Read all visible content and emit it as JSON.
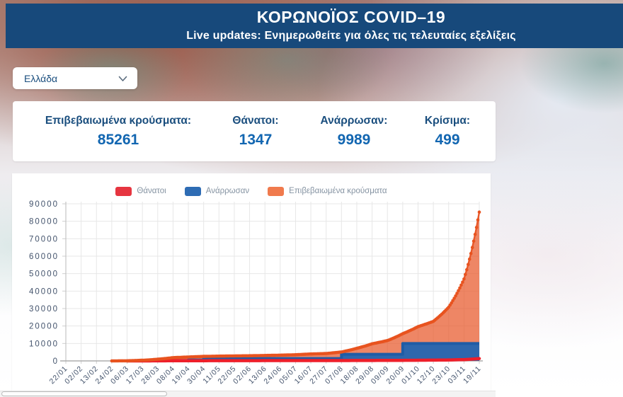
{
  "header": {
    "title": "ΚΟΡΩΝΟΪΟΣ COVID–19",
    "subtitle": "Live updates: Ενημερωθείτε για όλες τις τελευταίες εξελίξεις"
  },
  "country_selector": {
    "selected": "Ελλάδα"
  },
  "stats": {
    "items": [
      {
        "label": "Επιβεβαιωμένα κρούσματα:",
        "value": "85261"
      },
      {
        "label": "Θάνατοι:",
        "value": "1347"
      },
      {
        "label": "Ανάρρωσαν:",
        "value": "9989"
      },
      {
        "label": "Κρίσιμα:",
        "value": "499"
      }
    ]
  },
  "colors": {
    "header_navy": "#17497b",
    "label_navy": "#1a4e7e",
    "value_blue": "#1266b1",
    "deaths_red": "#ee1f2a",
    "recovered_blue": "#2e67ad",
    "confirmed_orange": "#e8582a"
  },
  "chart_data": {
    "type": "area",
    "title": "",
    "xlabel": "",
    "ylabel": "",
    "ylim": [
      0,
      90000
    ],
    "y_ticks": [
      0,
      10000,
      20000,
      30000,
      40000,
      50000,
      60000,
      70000,
      80000,
      90000
    ],
    "grid": true,
    "legend_position": "top",
    "categories": [
      "22/01",
      "02/02",
      "13/02",
      "24/02",
      "06/03",
      "17/03",
      "28/03",
      "08/04",
      "19/04",
      "30/04",
      "11/05",
      "22/05",
      "02/06",
      "13/06",
      "24/06",
      "05/07",
      "16/07",
      "27/07",
      "07/08",
      "18/08",
      "29/08",
      "09/09",
      "20/09",
      "01/10",
      "12/10",
      "23/10",
      "03/11",
      "19/11"
    ],
    "series": [
      {
        "name": "Θάνατοι",
        "style": "line",
        "color": "#ee1f2a",
        "swatch": "#e63540",
        "values": [
          0,
          0,
          0,
          0,
          1,
          5,
          32,
          83,
          113,
          140,
          151,
          169,
          180,
          183,
          190,
          192,
          194,
          202,
          210,
          230,
          259,
          284,
          338,
          393,
          449,
          559,
          749,
          1347
        ]
      },
      {
        "name": "Ανάρρωσαν",
        "style": "step-area",
        "color": "#1f5ca6",
        "fill": "#2e67ad",
        "swatch": "#2e6cb4",
        "values": [
          0,
          0,
          0,
          0,
          0,
          0,
          30,
          269,
          577,
          1374,
          1374,
          1374,
          1374,
          1374,
          1374,
          1374,
          1374,
          1374,
          3803,
          3803,
          3803,
          3803,
          9989,
          9989,
          9989,
          9989,
          9989,
          9989
        ]
      },
      {
        "name": "Επιβεβαιωμένα κρούσματα",
        "style": "area-dots",
        "color": "#e8582a",
        "fill": "rgba(232,88,42,0.72)",
        "swatch": "#f07a4d",
        "values": [
          0,
          0,
          0,
          0,
          45,
          387,
          991,
          1884,
          2235,
          2591,
          2726,
          2853,
          2941,
          3112,
          3287,
          3519,
          3964,
          4227,
          5123,
          7222,
          9800,
          11663,
          15595,
          19613,
          22652,
          30782,
          46892,
          85261
        ]
      }
    ]
  }
}
